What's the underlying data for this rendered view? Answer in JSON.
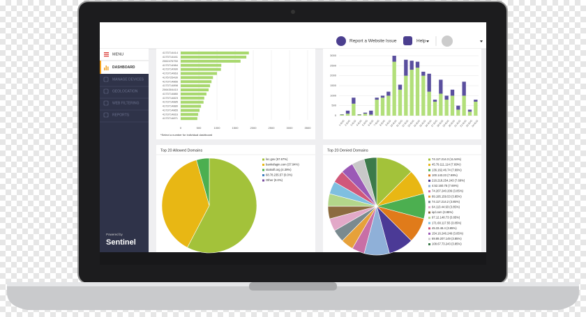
{
  "header": {
    "report": "Report a Website Issue",
    "help": "Help"
  },
  "sidebar": {
    "menu": "MENU",
    "items": [
      "DASHBOARD",
      "MANAGE DEVICES",
      "GEOLOCATION",
      "WEB FILTERING",
      "REPORTS"
    ],
    "powered": "Powered by",
    "brand": "Sentinel"
  },
  "top_chart": {
    "type": "bar",
    "orientation": "horizontal",
    "color": "#a8d86e",
    "categories": [
      "4173714414",
      "4173714441",
      "2062476750",
      "4173714984",
      "4173714990",
      "4173714663",
      "4175725430",
      "4173714866",
      "4173714898",
      "2064304410",
      "4173714880",
      "4173714823",
      "4173714885",
      "4173714880",
      "4173714865",
      "4173714816",
      "4173714871"
    ],
    "values": [
      1880,
      1810,
      1650,
      1120,
      1110,
      1000,
      890,
      850,
      810,
      770,
      710,
      650,
      630,
      560,
      520,
      480,
      460
    ],
    "xlim": [
      0,
      3500
    ],
    "xticks": [
      0,
      500,
      1000,
      1500,
      2000,
      2500,
      3000,
      3500
    ],
    "grid": true,
    "note": "*Select a number for individual dashboard"
  },
  "daily_chart": {
    "type": "stacked_bar",
    "categories": [
      "1 AUG",
      "2 AUG",
      "3 AUG",
      "4 AUG",
      "5 AUG",
      "6 AUG",
      "7 AUG",
      "8 AUG",
      "9 AUG",
      "10 AUG",
      "11 AUG",
      "12 AUG",
      "13 AUG",
      "14 AUG",
      "15 AUG",
      "16 AUG",
      "17 AUG",
      "18 AUG",
      "19 AUG",
      "20 AUG",
      "21 AUG",
      "22 AUG",
      "23 AUG",
      "24 AUG"
    ],
    "series": [
      {
        "color": "#b2df7a",
        "values": [
          50,
          100,
          600,
          50,
          100,
          50,
          800,
          900,
          1000,
          2700,
          1300,
          2000,
          2300,
          2400,
          2000,
          1200,
          700,
          1100,
          800,
          1000,
          300,
          1000,
          200,
          700
        ]
      },
      {
        "color": "#5a4f9e",
        "values": [
          20,
          150,
          300,
          20,
          50,
          200,
          100,
          100,
          200,
          300,
          250,
          800,
          450,
          300,
          200,
          900,
          100,
          700,
          200,
          300,
          200,
          700,
          100,
          100
        ]
      }
    ],
    "ylim": [
      0,
      3000
    ],
    "yticks": [
      0,
      500,
      1000,
      1500,
      2000,
      2500,
      3000
    ],
    "grid": true
  },
  "allowed_pie": {
    "type": "pie",
    "title": "Top 20 Allowed Domains",
    "labels": [
      "loc.gov (57.67%)",
      "bankofagin.com (37.94%)",
      "statsoft.org (4.39%)",
      "68.78.235.57 (0.0%)",
      "Other (0.0%)"
    ],
    "values": [
      57.67,
      37.94,
      4.39,
      0,
      0
    ],
    "colors": [
      "#a3c23a",
      "#e8b714",
      "#4caf50",
      "#3f7fbf",
      "#7b4fa0"
    ]
  },
  "denied_pie": {
    "type": "pie",
    "title": "Top 20 Denied Domains",
    "labels": [
      "74.117.214.3 (11.54%)",
      "45.79.111.114 (7.69%)",
      "136.162.46.74 (7.69%)",
      "100.143.23 (7.69%)",
      "216.218.254.243 (7.69%)",
      "4.52.160.75 (7.69%)",
      "74.207.240.206 (3.85%)",
      "89.195.159.53 (3.85%)",
      "74.117.214.2 (3.85%)",
      "64.113.44.93 (3.85%)",
      "iqd.com (3.85%)",
      "97.12.148.73 (3.85%)",
      "171.68.117.55 (3.85%)",
      "45.33.48.4 (3.85%)",
      "154.16.246.246 (3.85%)",
      "69.89.207.149 (3.85%)",
      "108.67.73.243 (3.85%)"
    ],
    "values": [
      11.54,
      7.69,
      7.69,
      7.69,
      7.69,
      7.69,
      3.85,
      3.85,
      3.85,
      3.85,
      3.85,
      3.85,
      3.85,
      3.85,
      3.85,
      3.85,
      3.85
    ],
    "colors": [
      "#a3c23a",
      "#e8b714",
      "#4caf50",
      "#e07b1a",
      "#4b3a96",
      "#8fb0d8",
      "#c86fa6",
      "#e6a13a",
      "#7a8a8f",
      "#e2a9c8",
      "#8c6b3f",
      "#b3d68a",
      "#7fbfe0",
      "#d0587a",
      "#9b59b6",
      "#c8c8c8",
      "#3c7a4a"
    ]
  }
}
